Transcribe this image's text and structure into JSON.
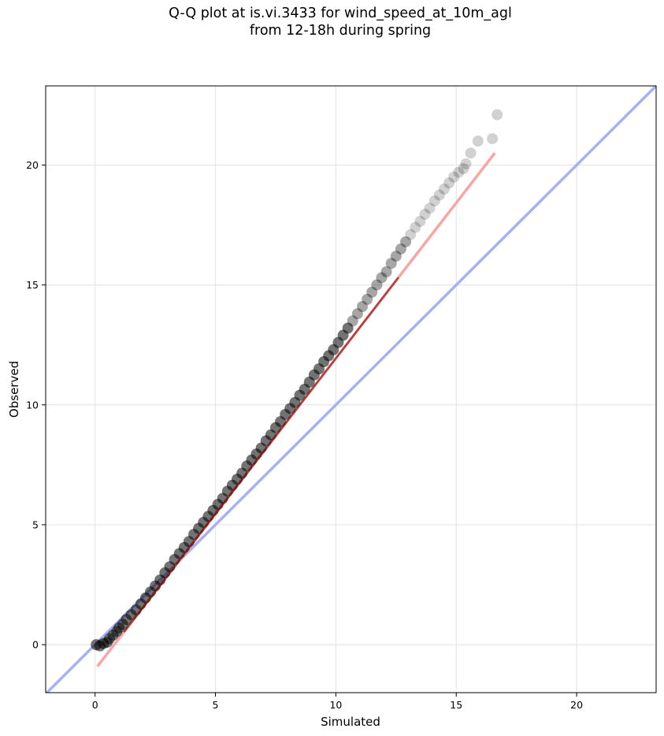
{
  "chart_data": {
    "type": "scatter",
    "title": [
      "Q-Q plot at is.vi.3433 for wind_speed_at_10m_agl",
      "from 12-18h during spring"
    ],
    "xlabel": "Simulated",
    "ylabel": "Observed",
    "xlim": [
      -2.05,
      23.3
    ],
    "ylim": [
      -2.0,
      23.3
    ],
    "xticks": [
      0,
      5,
      10,
      15,
      20
    ],
    "yticks": [
      0,
      5,
      10,
      15,
      20
    ],
    "grid": true,
    "colors": {
      "points": "#000000",
      "identity_line": "#aab0f0",
      "fit_line": "#f6a6a6",
      "fit_line_dark": "#7a0000"
    },
    "identity_line": {
      "x": [
        -2.05,
        23.3
      ],
      "y": [
        -2.05,
        23.3
      ]
    },
    "fit_line": {
      "x": [
        0.1,
        16.6
      ],
      "y": [
        -0.9,
        20.5
      ]
    },
    "series": [
      {
        "x": [
          0.05,
          0.2,
          0.35,
          0.5,
          0.6,
          0.75,
          0.9,
          1.0,
          1.15,
          1.3,
          1.5,
          1.7,
          1.9,
          2.1,
          2.3,
          2.5,
          2.7,
          2.9,
          3.1,
          3.3,
          3.5,
          3.7,
          3.9,
          4.1,
          4.3,
          4.5,
          4.7,
          4.9,
          5.1,
          5.3,
          5.5,
          5.7,
          5.9,
          6.1,
          6.3,
          6.5,
          6.7,
          6.9,
          7.1,
          7.3,
          7.5,
          7.7,
          7.9,
          8.1,
          8.3,
          8.5,
          8.7,
          8.9,
          9.1,
          9.3,
          9.5,
          9.7,
          9.9,
          10.1,
          10.3,
          10.5,
          10.7,
          10.9,
          11.1,
          11.3,
          11.5,
          11.7,
          11.9,
          12.1,
          12.3,
          12.5,
          12.7,
          12.9,
          13.1,
          13.3,
          13.5,
          13.7,
          13.9,
          14.1,
          14.3,
          14.5,
          14.7,
          14.9,
          15.1,
          15.3,
          15.4,
          15.6,
          15.9,
          16.5,
          16.7
        ],
        "y": [
          0.0,
          -0.05,
          0.05,
          0.1,
          0.25,
          0.4,
          0.55,
          0.7,
          0.85,
          1.05,
          1.25,
          1.45,
          1.7,
          1.95,
          2.2,
          2.45,
          2.7,
          3.0,
          3.25,
          3.55,
          3.8,
          4.05,
          4.3,
          4.6,
          4.85,
          5.1,
          5.35,
          5.6,
          5.85,
          6.1,
          6.4,
          6.65,
          6.9,
          7.15,
          7.45,
          7.7,
          7.95,
          8.2,
          8.5,
          8.75,
          9.05,
          9.3,
          9.6,
          9.85,
          10.1,
          10.4,
          10.65,
          10.95,
          11.25,
          11.5,
          11.8,
          12.05,
          12.3,
          12.6,
          12.9,
          13.2,
          13.5,
          13.8,
          14.1,
          14.4,
          14.7,
          15.0,
          15.3,
          15.55,
          15.9,
          16.2,
          16.5,
          16.8,
          17.1,
          17.4,
          17.65,
          17.95,
          18.2,
          18.5,
          18.75,
          19.0,
          19.25,
          19.5,
          19.7,
          19.85,
          20.05,
          20.5,
          21.0,
          21.1,
          22.1
        ]
      }
    ]
  }
}
